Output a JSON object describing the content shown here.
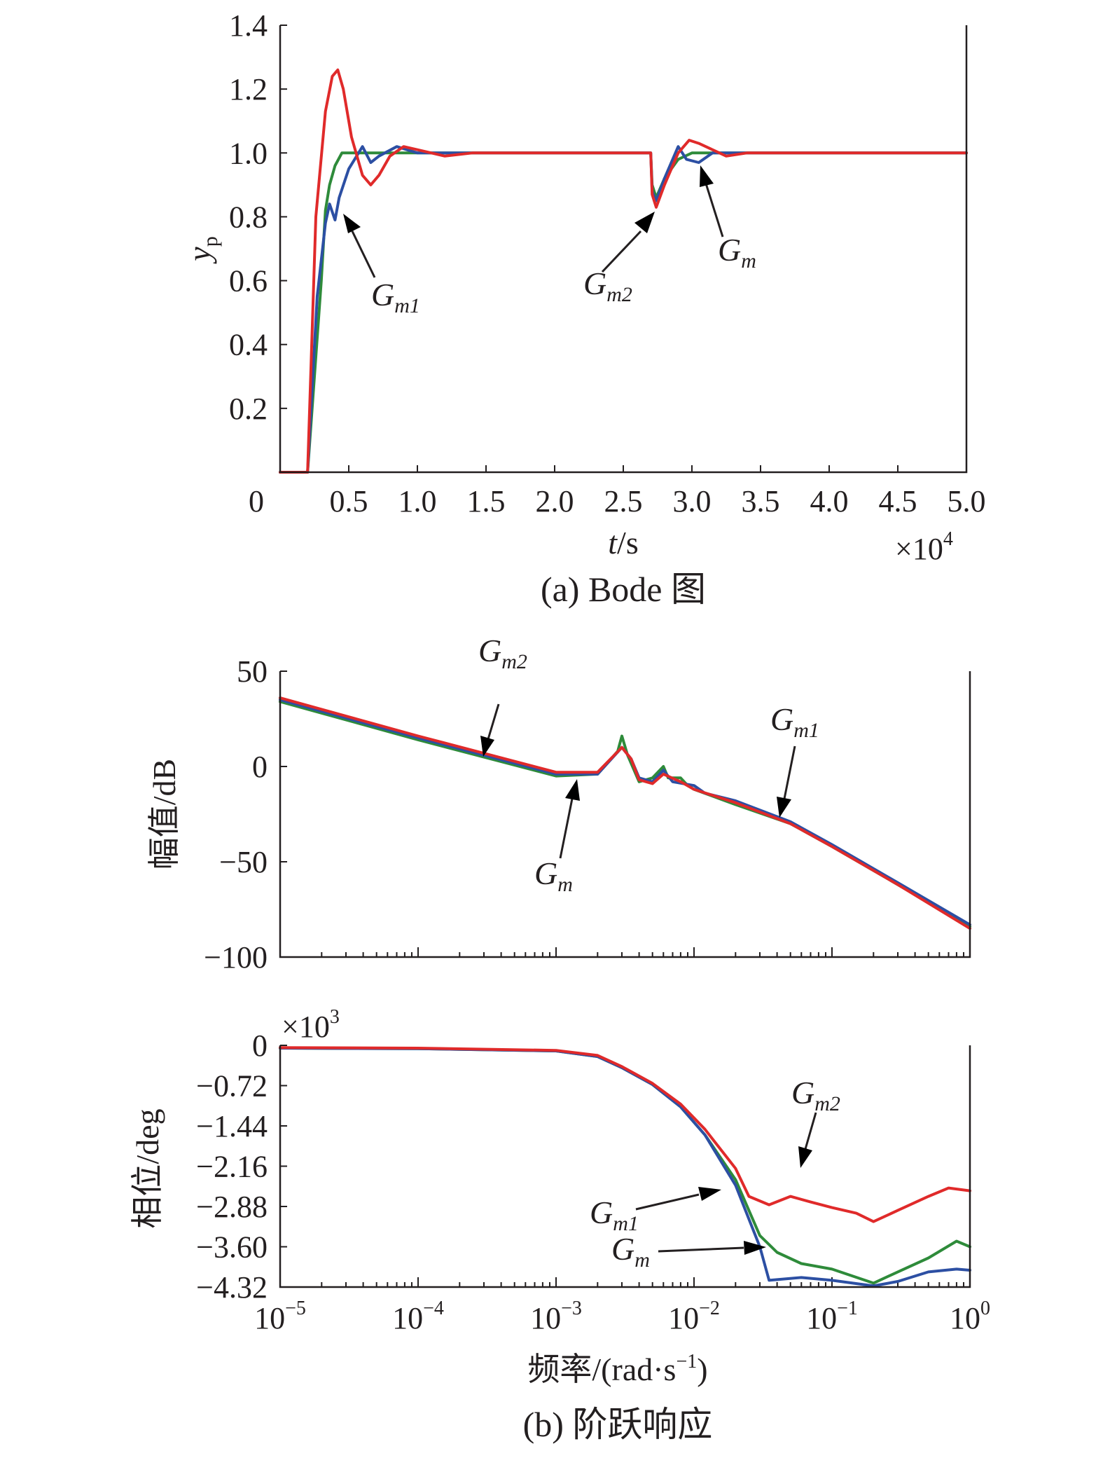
{
  "chart_data": [
    {
      "id": "step",
      "type": "line",
      "caption": "(a) Bode 图",
      "xlabel_italic": "t",
      "xlabel_unit": "/s",
      "ylabel_main": "y",
      "ylabel_sub": "p",
      "x_scale_base": "×10",
      "x_scale_exp": "4",
      "xlim": [
        0,
        5.0
      ],
      "ylim": [
        0,
        1.4
      ],
      "x_ticks": [
        0,
        0.5,
        1.0,
        1.5,
        2.0,
        2.5,
        3.0,
        3.5,
        4.0,
        4.5,
        5.0
      ],
      "x_tick_labels": [
        "0",
        "0.5",
        "1.0",
        "1.5",
        "2.0",
        "2.5",
        "3.0",
        "3.5",
        "4.0",
        "4.5",
        "5.0"
      ],
      "y_ticks": [
        0.2,
        0.4,
        0.6,
        0.8,
        1.0,
        1.2,
        1.4
      ],
      "y_tick_labels": [
        "0.2",
        "0.4",
        "0.6",
        "0.8",
        "1.0",
        "1.2",
        "1.4"
      ],
      "series": [
        {
          "name": "green",
          "color": "#2e8b3a",
          "points": [
            [
              0,
              0
            ],
            [
              0.2,
              0
            ],
            [
              0.3,
              0.6
            ],
            [
              0.33,
              0.82
            ],
            [
              0.36,
              0.9
            ],
            [
              0.4,
              0.96
            ],
            [
              0.45,
              1.0
            ],
            [
              2.7,
              1.0
            ],
            [
              2.71,
              0.9
            ],
            [
              2.74,
              0.86
            ],
            [
              2.8,
              0.92
            ],
            [
              2.9,
              0.98
            ],
            [
              3.0,
              1.0
            ],
            [
              5.0,
              1.0
            ]
          ]
        },
        {
          "name": "blue",
          "color": "#2c4fa3",
          "points": [
            [
              0,
              0
            ],
            [
              0.2,
              0
            ],
            [
              0.27,
              0.55
            ],
            [
              0.33,
              0.78
            ],
            [
              0.36,
              0.84
            ],
            [
              0.4,
              0.79
            ],
            [
              0.43,
              0.86
            ],
            [
              0.5,
              0.95
            ],
            [
              0.6,
              1.02
            ],
            [
              0.66,
              0.97
            ],
            [
              0.72,
              0.99
            ],
            [
              0.85,
              1.02
            ],
            [
              1.0,
              1.0
            ],
            [
              2.7,
              1.0
            ],
            [
              2.71,
              0.88
            ],
            [
              2.74,
              0.85
            ],
            [
              2.8,
              0.92
            ],
            [
              2.9,
              1.02
            ],
            [
              2.96,
              0.98
            ],
            [
              3.05,
              0.97
            ],
            [
              3.15,
              1.0
            ],
            [
              5.0,
              1.0
            ]
          ]
        },
        {
          "name": "red",
          "color": "#e02a2a",
          "points": [
            [
              0,
              0
            ],
            [
              0.2,
              0
            ],
            [
              0.26,
              0.8
            ],
            [
              0.33,
              1.13
            ],
            [
              0.38,
              1.24
            ],
            [
              0.42,
              1.26
            ],
            [
              0.46,
              1.2
            ],
            [
              0.52,
              1.05
            ],
            [
              0.6,
              0.93
            ],
            [
              0.66,
              0.9
            ],
            [
              0.72,
              0.93
            ],
            [
              0.8,
              0.99
            ],
            [
              0.9,
              1.02
            ],
            [
              1.0,
              1.01
            ],
            [
              1.2,
              0.99
            ],
            [
              1.4,
              1.0
            ],
            [
              2.7,
              1.0
            ],
            [
              2.71,
              0.87
            ],
            [
              2.74,
              0.83
            ],
            [
              2.8,
              0.9
            ],
            [
              2.9,
              1.0
            ],
            [
              2.98,
              1.04
            ],
            [
              3.05,
              1.03
            ],
            [
              3.15,
              1.01
            ],
            [
              3.25,
              0.99
            ],
            [
              3.4,
              1.0
            ],
            [
              5.0,
              1.0
            ]
          ]
        }
      ],
      "annotations": [
        {
          "main": "G",
          "sub": "m1"
        },
        {
          "main": "G",
          "sub": "m2"
        },
        {
          "main": "G",
          "sub": "m"
        }
      ]
    },
    {
      "id": "magnitude",
      "type": "line",
      "x_scale": "log",
      "ylabel": "幅值/dB",
      "xlim": [
        1e-05,
        1
      ],
      "ylim": [
        -100,
        50
      ],
      "y_ticks": [
        -100,
        -50,
        0,
        50
      ],
      "y_tick_labels": [
        "−100",
        "−50",
        "0",
        "50"
      ],
      "series": [
        {
          "name": "green",
          "color": "#2e8b3a",
          "points": [
            [
              1e-05,
              34
            ],
            [
              0.0001,
              14
            ],
            [
              0.001,
              -5
            ],
            [
              0.002,
              -4
            ],
            [
              0.0028,
              8
            ],
            [
              0.003,
              16
            ],
            [
              0.0033,
              6
            ],
            [
              0.004,
              -8
            ],
            [
              0.005,
              -6
            ],
            [
              0.006,
              0
            ],
            [
              0.0065,
              -6
            ],
            [
              0.008,
              -6
            ],
            [
              0.009,
              -10
            ],
            [
              0.01,
              -12
            ],
            [
              0.02,
              -20
            ],
            [
              0.05,
              -30
            ],
            [
              0.1,
              -42
            ],
            [
              0.3,
              -62
            ],
            [
              1,
              -84
            ]
          ]
        },
        {
          "name": "blue",
          "color": "#2c4fa3",
          "points": [
            [
              1e-05,
              35
            ],
            [
              0.0001,
              15
            ],
            [
              0.001,
              -4
            ],
            [
              0.002,
              -4
            ],
            [
              0.003,
              10
            ],
            [
              0.0035,
              4
            ],
            [
              0.004,
              -6
            ],
            [
              0.005,
              -8
            ],
            [
              0.006,
              -2
            ],
            [
              0.007,
              -8
            ],
            [
              0.01,
              -10
            ],
            [
              0.012,
              -14
            ],
            [
              0.02,
              -18
            ],
            [
              0.05,
              -29
            ],
            [
              0.1,
              -41
            ],
            [
              0.3,
              -61
            ],
            [
              1,
              -83
            ]
          ]
        },
        {
          "name": "red",
          "color": "#e02a2a",
          "points": [
            [
              1e-05,
              36
            ],
            [
              0.0001,
              16
            ],
            [
              0.001,
              -3
            ],
            [
              0.002,
              -3
            ],
            [
              0.003,
              10
            ],
            [
              0.0035,
              4
            ],
            [
              0.004,
              -7
            ],
            [
              0.005,
              -9
            ],
            [
              0.006,
              -4
            ],
            [
              0.008,
              -8
            ],
            [
              0.01,
              -12
            ],
            [
              0.02,
              -19
            ],
            [
              0.05,
              -30
            ],
            [
              0.1,
              -42
            ],
            [
              0.3,
              -62
            ],
            [
              1,
              -85
            ]
          ]
        }
      ],
      "annotations": [
        {
          "main": "G",
          "sub": "m2"
        },
        {
          "main": "G",
          "sub": "m1"
        },
        {
          "main": "G",
          "sub": "m"
        }
      ]
    },
    {
      "id": "phase",
      "type": "line",
      "x_scale": "log",
      "ylabel": "相位/deg",
      "xlabel": "频率/(rad·s",
      "xlabel_sup": "−1",
      "xlabel_close": ")",
      "y_scale_base": "×10",
      "y_scale_exp": "3",
      "caption": "(b) 阶跃响应",
      "xlim": [
        1e-05,
        1
      ],
      "ylim": [
        -4.32,
        0
      ],
      "y_ticks": [
        0,
        -0.72,
        -1.44,
        -2.16,
        -2.88,
        -3.6,
        -4.32
      ],
      "y_tick_labels": [
        "0",
        "−0.72",
        "−1.44",
        "−2.16",
        "−2.88",
        "−3.60",
        "−4.32"
      ],
      "x_tick_base": "10",
      "x_tick_exps": [
        "−5",
        "−4",
        "−3",
        "−2",
        "−1",
        "0"
      ],
      "series": [
        {
          "name": "green",
          "color": "#2e8b3a",
          "points": [
            [
              1e-05,
              -0.05
            ],
            [
              0.0001,
              -0.06
            ],
            [
              0.001,
              -0.1
            ],
            [
              0.002,
              -0.2
            ],
            [
              0.003,
              -0.4
            ],
            [
              0.005,
              -0.7
            ],
            [
              0.008,
              -1.1
            ],
            [
              0.012,
              -1.6
            ],
            [
              0.02,
              -2.4
            ],
            [
              0.03,
              -3.4
            ],
            [
              0.04,
              -3.7
            ],
            [
              0.06,
              -3.9
            ],
            [
              0.1,
              -4.0
            ],
            [
              0.2,
              -4.25
            ],
            [
              0.3,
              -4.05
            ],
            [
              0.5,
              -3.8
            ],
            [
              0.8,
              -3.5
            ],
            [
              1,
              -3.6
            ]
          ]
        },
        {
          "name": "blue",
          "color": "#2c4fa3",
          "points": [
            [
              1e-05,
              -0.05
            ],
            [
              0.0001,
              -0.06
            ],
            [
              0.001,
              -0.1
            ],
            [
              0.002,
              -0.2
            ],
            [
              0.003,
              -0.4
            ],
            [
              0.005,
              -0.7
            ],
            [
              0.008,
              -1.1
            ],
            [
              0.012,
              -1.6
            ],
            [
              0.02,
              -2.5
            ],
            [
              0.03,
              -3.6
            ],
            [
              0.035,
              -4.2
            ],
            [
              0.06,
              -4.15
            ],
            [
              0.1,
              -4.2
            ],
            [
              0.2,
              -4.3
            ],
            [
              0.3,
              -4.22
            ],
            [
              0.5,
              -4.05
            ],
            [
              0.8,
              -4.0
            ],
            [
              1,
              -4.02
            ]
          ]
        },
        {
          "name": "red",
          "color": "#e02a2a",
          "points": [
            [
              1e-05,
              -0.04
            ],
            [
              0.0001,
              -0.05
            ],
            [
              0.001,
              -0.09
            ],
            [
              0.002,
              -0.18
            ],
            [
              0.003,
              -0.38
            ],
            [
              0.005,
              -0.68
            ],
            [
              0.008,
              -1.05
            ],
            [
              0.012,
              -1.5
            ],
            [
              0.02,
              -2.2
            ],
            [
              0.025,
              -2.7
            ],
            [
              0.035,
              -2.85
            ],
            [
              0.05,
              -2.7
            ],
            [
              0.07,
              -2.8
            ],
            [
              0.1,
              -2.9
            ],
            [
              0.15,
              -3.0
            ],
            [
              0.2,
              -3.15
            ],
            [
              0.3,
              -2.95
            ],
            [
              0.5,
              -2.7
            ],
            [
              0.7,
              -2.55
            ],
            [
              1,
              -2.6
            ]
          ]
        }
      ],
      "annotations": [
        {
          "main": "G",
          "sub": "m2"
        },
        {
          "main": "G",
          "sub": "m1"
        },
        {
          "main": "G",
          "sub": "m"
        }
      ]
    }
  ]
}
